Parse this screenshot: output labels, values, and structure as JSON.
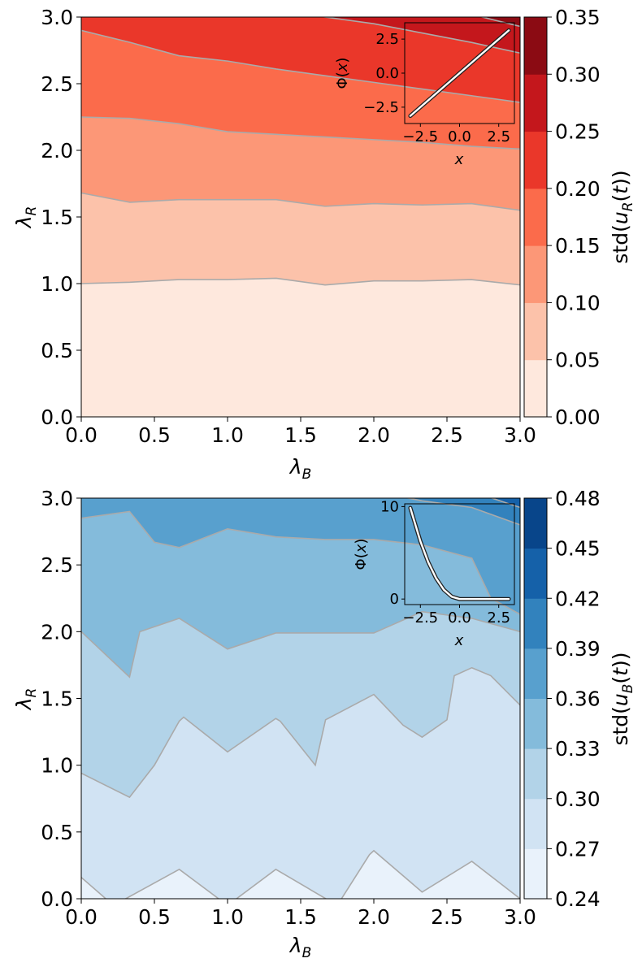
{
  "chart_data": [
    {
      "type": "contourf",
      "panel": "top",
      "xlabel": "λB",
      "ylabel": "λR",
      "xlim": [
        0.0,
        3.0
      ],
      "ylim": [
        0.0,
        3.0
      ],
      "x_ticks": [
        "0.0",
        "0.5",
        "1.0",
        "1.5",
        "2.0",
        "2.5",
        "3.0"
      ],
      "y_ticks": [
        "0.0",
        "0.5",
        "1.0",
        "1.5",
        "2.0",
        "2.5",
        "3.0"
      ],
      "colorbar": {
        "label": "std(uR(t))",
        "levels": [
          0.0,
          0.05,
          0.1,
          0.15,
          0.2,
          0.25,
          0.3,
          0.35
        ],
        "tick_labels": [
          "0.00",
          "0.05",
          "0.10",
          "0.15",
          "0.20",
          "0.25",
          "0.30",
          "0.35"
        ],
        "colors": [
          "#fee8dd",
          "#fcc2aa",
          "#fc9777",
          "#fb6b4b",
          "#ea372a",
          "#c4171c",
          "#8b0b13"
        ]
      },
      "contour_line_color": "#aaaaaa",
      "x_grid": [
        0.0,
        0.333,
        0.667,
        1.0,
        1.333,
        1.667,
        2.0,
        2.333,
        2.667,
        3.0
      ],
      "contours": [
        {
          "level": 0.05,
          "y": [
            1.0,
            1.01,
            1.03,
            1.03,
            1.04,
            0.99,
            1.02,
            1.02,
            1.03,
            0.99
          ]
        },
        {
          "level": 0.1,
          "y": [
            1.68,
            1.61,
            1.63,
            1.63,
            1.63,
            1.58,
            1.6,
            1.59,
            1.6,
            1.55
          ]
        },
        {
          "level": 0.15,
          "y": [
            2.25,
            2.24,
            2.2,
            2.14,
            2.12,
            2.1,
            2.08,
            2.06,
            2.03,
            2.01
          ]
        },
        {
          "level": 0.2,
          "y": [
            2.9,
            2.81,
            2.71,
            2.67,
            2.61,
            2.56,
            2.51,
            2.46,
            2.41,
            2.36
          ]
        },
        {
          "level": 0.25,
          "y": [
            3.05,
            3.05,
            3.05,
            3.05,
            3.05,
            3.0,
            2.95,
            2.88,
            2.81,
            2.73
          ]
        },
        {
          "level": 0.3,
          "y": [
            3.05,
            3.05,
            3.05,
            3.05,
            3.05,
            3.05,
            3.05,
            3.05,
            3.02,
            2.93
          ]
        }
      ],
      "inset": {
        "xlabel": "x",
        "ylabel": "Φ(x)",
        "xlim": [
          -3.5,
          3.5
        ],
        "ylim": [
          -3.7,
          3.7
        ],
        "x_ticks": [
          "−2.5",
          "0.0",
          "2.5"
        ],
        "y_ticks": [
          "−2.5",
          "0.0",
          "2.5"
        ],
        "curve": "linear",
        "x": [
          -3.14,
          3.14
        ],
        "y": [
          -3.14,
          3.14
        ]
      }
    },
    {
      "type": "contourf",
      "panel": "bottom",
      "xlabel": "λB",
      "ylabel": "λR",
      "xlim": [
        0.0,
        3.0
      ],
      "ylim": [
        0.0,
        3.0
      ],
      "x_ticks": [
        "0.0",
        "0.5",
        "1.0",
        "1.5",
        "2.0",
        "2.5",
        "3.0"
      ],
      "y_ticks": [
        "0.0",
        "0.5",
        "1.0",
        "1.5",
        "2.0",
        "2.5",
        "3.0"
      ],
      "colorbar": {
        "label": "std(uB(t))",
        "levels": [
          0.24,
          0.27,
          0.3,
          0.33,
          0.36,
          0.39,
          0.42,
          0.45,
          0.48
        ],
        "tick_labels": [
          "0.24",
          "0.27",
          "0.30",
          "0.33",
          "0.36",
          "0.39",
          "0.42",
          "0.45",
          "0.48"
        ],
        "colors": [
          "#e9f2fb",
          "#d1e3f3",
          "#b2d3e8",
          "#84bbdb",
          "#58a0ce",
          "#3282bd",
          "#1561a9",
          "#08458a"
        ]
      },
      "contour_line_color": "#aaaaaa",
      "contours": [
        {
          "level": 0.27,
          "x": [
            0.0,
            0.22,
            0.67,
            1.0,
            1.33,
            1.75,
            1.97,
            2.0,
            2.33,
            2.67,
            3.0
          ],
          "y": [
            0.16,
            -0.05,
            0.22,
            -0.05,
            0.22,
            -0.05,
            0.33,
            0.36,
            0.05,
            0.28,
            0.0
          ]
        },
        {
          "level": 0.3,
          "x": [
            0.0,
            0.33,
            0.5,
            0.67,
            0.7,
            1.0,
            1.33,
            1.36,
            1.6,
            1.67,
            2.0,
            2.2,
            2.33,
            2.5,
            2.55,
            2.67,
            2.8,
            3.0
          ],
          "y": [
            0.94,
            0.76,
            1.0,
            1.33,
            1.36,
            1.1,
            1.35,
            1.33,
            1.0,
            1.34,
            1.53,
            1.3,
            1.21,
            1.34,
            1.67,
            1.73,
            1.67,
            1.45
          ]
        },
        {
          "level": 0.33,
          "x": [
            0.0,
            0.33,
            0.4,
            0.67,
            1.0,
            1.33,
            1.67,
            2.0,
            2.33,
            2.67,
            3.0
          ],
          "y": [
            2.0,
            1.66,
            2.0,
            2.1,
            1.87,
            1.99,
            1.99,
            1.99,
            2.15,
            2.1,
            2.0
          ]
        },
        {
          "level": 0.36,
          "x": [
            0.0,
            0.33,
            0.5,
            0.67,
            1.0,
            1.33,
            1.67,
            2.0,
            2.33,
            2.67,
            2.8,
            3.0
          ],
          "y": [
            2.85,
            2.9,
            2.67,
            2.63,
            2.77,
            2.71,
            2.69,
            2.69,
            2.65,
            2.55,
            2.25,
            2.13
          ]
        },
        {
          "level": 0.39,
          "x": [
            0.0,
            0.3,
            1.0,
            2.0,
            2.33,
            2.67,
            3.0
          ],
          "y": [
            3.05,
            3.05,
            3.05,
            3.05,
            2.98,
            2.93,
            2.8
          ]
        },
        {
          "level": 0.42,
          "x": [
            0.0,
            2.5,
            2.67,
            3.0
          ],
          "y": [
            3.05,
            3.05,
            3.05,
            2.93
          ]
        },
        {
          "level": 0.45,
          "x": [
            0.0,
            2.7,
            2.8,
            3.0
          ],
          "y": [
            3.05,
            3.05,
            3.05,
            3.0
          ]
        }
      ],
      "inset": {
        "xlabel": "x",
        "ylabel": "Φ(x)",
        "xlim": [
          -3.5,
          3.5
        ],
        "ylim": [
          -0.6,
          10.3
        ],
        "x_ticks": [
          "−2.5",
          "0.0",
          "2.5"
        ],
        "y_ticks": [
          "0",
          "10"
        ],
        "curve": "quadratic-then-zero",
        "x": [
          -3.14,
          -2.5,
          -2.0,
          -1.5,
          -1.0,
          -0.5,
          0.0,
          3.14
        ],
        "y": [
          9.86,
          6.25,
          4.0,
          2.25,
          1.0,
          0.25,
          0.0,
          0.0
        ]
      }
    }
  ]
}
